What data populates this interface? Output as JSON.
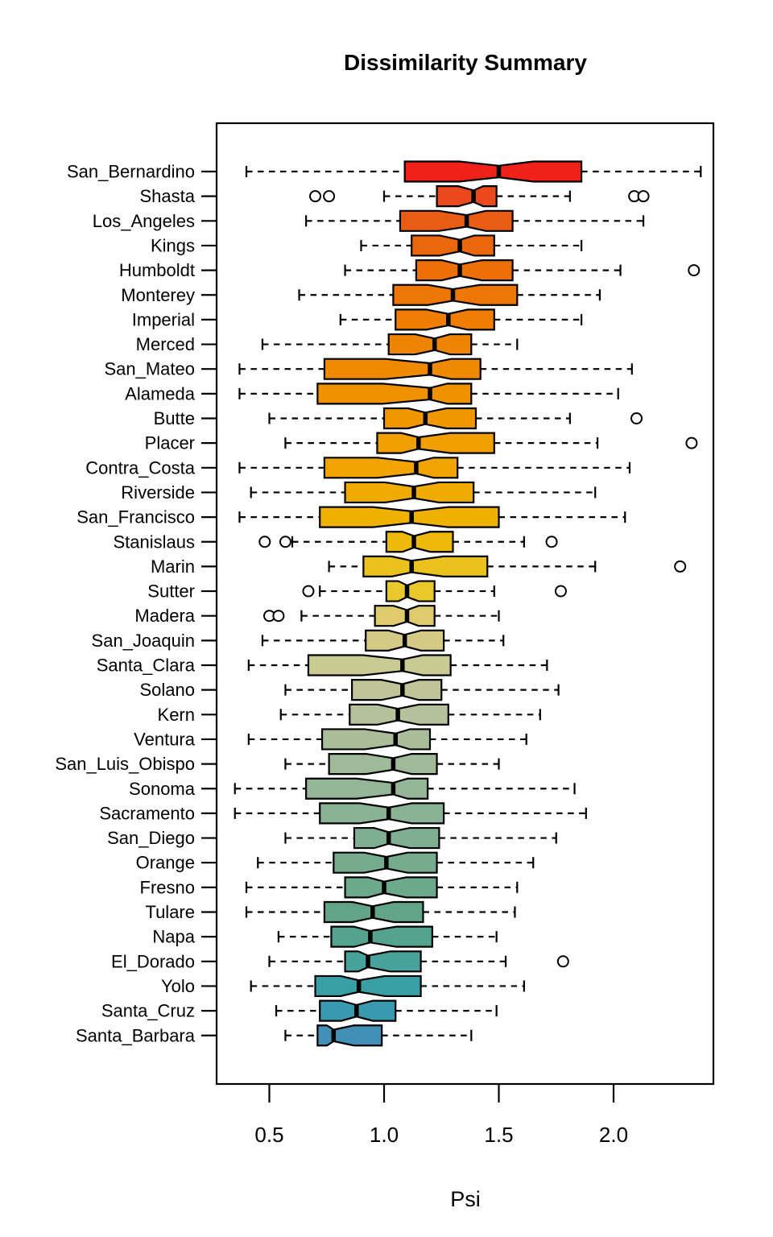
{
  "title": "Dissimilarity Summary",
  "chart_data": {
    "type": "boxplot",
    "orientation": "horizontal",
    "title": "Dissimilarity Summary",
    "xlabel": "Psi",
    "ylabel": "",
    "x_ticks": [
      "0.5",
      "1.0",
      "1.5",
      "2.0"
    ],
    "x_tick_values": [
      0.5,
      1.0,
      1.5,
      2.0
    ],
    "xlim": [
      0.27,
      2.44
    ],
    "grid": false,
    "notched": true,
    "whisker_style": "dashed",
    "frame_color": "#000000",
    "median_color": "#000000",
    "outlier_style": "open-circle",
    "rows": [
      {
        "label": "San_Bernardino",
        "color": "#EF2118",
        "whisker_lo": 0.4,
        "q1": 1.09,
        "median": 1.5,
        "q3": 1.86,
        "whisker_hi": 2.38,
        "outliers": []
      },
      {
        "label": "Shasta",
        "color": "#E9491D",
        "whisker_lo": 1.0,
        "q1": 1.23,
        "median": 1.39,
        "q3": 1.49,
        "whisker_hi": 1.81,
        "outliers": [
          0.7,
          0.76,
          2.09,
          2.13
        ]
      },
      {
        "label": "Los_Angeles",
        "color": "#EA5C14",
        "whisker_lo": 0.66,
        "q1": 1.07,
        "median": 1.36,
        "q3": 1.56,
        "whisker_hi": 2.13,
        "outliers": []
      },
      {
        "label": "Kings",
        "color": "#EB670E",
        "whisker_lo": 0.9,
        "q1": 1.12,
        "median": 1.33,
        "q3": 1.48,
        "whisker_hi": 1.86,
        "outliers": []
      },
      {
        "label": "Humboldt",
        "color": "#EC6F08",
        "whisker_lo": 0.83,
        "q1": 1.14,
        "median": 1.33,
        "q3": 1.56,
        "whisker_hi": 2.03,
        "outliers": [
          2.35
        ]
      },
      {
        "label": "Monterey",
        "color": "#ED7604",
        "whisker_lo": 0.63,
        "q1": 1.04,
        "median": 1.3,
        "q3": 1.58,
        "whisker_hi": 1.94,
        "outliers": []
      },
      {
        "label": "Imperial",
        "color": "#EE7D02",
        "whisker_lo": 0.81,
        "q1": 1.05,
        "median": 1.28,
        "q3": 1.48,
        "whisker_hi": 1.86,
        "outliers": []
      },
      {
        "label": "Merced",
        "color": "#EE8401",
        "whisker_lo": 0.47,
        "q1": 1.02,
        "median": 1.22,
        "q3": 1.38,
        "whisker_hi": 1.58,
        "outliers": []
      },
      {
        "label": "San_Mateo",
        "color": "#EF8A00",
        "whisker_lo": 0.37,
        "q1": 0.74,
        "median": 1.2,
        "q3": 1.42,
        "whisker_hi": 2.08,
        "outliers": []
      },
      {
        "label": "Alameda",
        "color": "#F09100",
        "whisker_lo": 0.37,
        "q1": 0.71,
        "median": 1.2,
        "q3": 1.38,
        "whisker_hi": 2.02,
        "outliers": []
      },
      {
        "label": "Butte",
        "color": "#F09700",
        "whisker_lo": 0.5,
        "q1": 1.0,
        "median": 1.18,
        "q3": 1.4,
        "whisker_hi": 1.81,
        "outliers": [
          2.1
        ]
      },
      {
        "label": "Placer",
        "color": "#F19E00",
        "whisker_lo": 0.57,
        "q1": 0.97,
        "median": 1.15,
        "q3": 1.48,
        "whisker_hi": 1.93,
        "outliers": [
          2.34
        ]
      },
      {
        "label": "Contra_Costa",
        "color": "#F1A400",
        "whisker_lo": 0.37,
        "q1": 0.74,
        "median": 1.14,
        "q3": 1.32,
        "whisker_hi": 2.07,
        "outliers": []
      },
      {
        "label": "Riverside",
        "color": "#F0AB00",
        "whisker_lo": 0.42,
        "q1": 0.83,
        "median": 1.13,
        "q3": 1.39,
        "whisker_hi": 1.92,
        "outliers": []
      },
      {
        "label": "San_Francisco",
        "color": "#EFB100",
        "whisker_lo": 0.37,
        "q1": 0.72,
        "median": 1.12,
        "q3": 1.5,
        "whisker_hi": 2.05,
        "outliers": []
      },
      {
        "label": "Stanislaus",
        "color": "#EDB90B",
        "whisker_lo": 0.6,
        "q1": 1.01,
        "median": 1.13,
        "q3": 1.3,
        "whisker_hi": 1.61,
        "outliers": [
          0.48,
          0.57,
          1.73
        ]
      },
      {
        "label": "Marin",
        "color": "#EBC11D",
        "whisker_lo": 0.76,
        "q1": 0.91,
        "median": 1.12,
        "q3": 1.45,
        "whisker_hi": 1.92,
        "outliers": [
          2.29
        ]
      },
      {
        "label": "Sutter",
        "color": "#E8C82B",
        "whisker_lo": 0.72,
        "q1": 1.01,
        "median": 1.1,
        "q3": 1.22,
        "whisker_hi": 1.48,
        "outliers": [
          0.67,
          1.77
        ]
      },
      {
        "label": "Madera",
        "color": "#DFCA6C",
        "whisker_lo": 0.64,
        "q1": 0.96,
        "median": 1.1,
        "q3": 1.22,
        "whisker_hi": 1.5,
        "outliers": [
          0.5,
          0.54
        ]
      },
      {
        "label": "San_Joaquin",
        "color": "#D5CA85",
        "whisker_lo": 0.47,
        "q1": 0.92,
        "median": 1.09,
        "q3": 1.26,
        "whisker_hi": 1.52,
        "outliers": []
      },
      {
        "label": "Santa_Clara",
        "color": "#CACA94",
        "whisker_lo": 0.41,
        "q1": 0.67,
        "median": 1.08,
        "q3": 1.29,
        "whisker_hi": 1.71,
        "outliers": []
      },
      {
        "label": "Solano",
        "color": "#BFC599",
        "whisker_lo": 0.57,
        "q1": 0.86,
        "median": 1.08,
        "q3": 1.25,
        "whisker_hi": 1.76,
        "outliers": []
      },
      {
        "label": "Kern",
        "color": "#B4C19B",
        "whisker_lo": 0.55,
        "q1": 0.85,
        "median": 1.06,
        "q3": 1.28,
        "whisker_hi": 1.68,
        "outliers": []
      },
      {
        "label": "Ventura",
        "color": "#A9BD9B",
        "whisker_lo": 0.41,
        "q1": 0.73,
        "median": 1.05,
        "q3": 1.2,
        "whisker_hi": 1.62,
        "outliers": []
      },
      {
        "label": "San_Luis_Obispo",
        "color": "#9FB99A",
        "whisker_lo": 0.57,
        "q1": 0.76,
        "median": 1.04,
        "q3": 1.23,
        "whisker_hi": 1.5,
        "outliers": []
      },
      {
        "label": "Sonoma",
        "color": "#94B598",
        "whisker_lo": 0.35,
        "q1": 0.66,
        "median": 1.04,
        "q3": 1.19,
        "whisker_hi": 1.83,
        "outliers": []
      },
      {
        "label": "Sacramento",
        "color": "#8AB295",
        "whisker_lo": 0.35,
        "q1": 0.72,
        "median": 1.02,
        "q3": 1.26,
        "whisker_hi": 1.88,
        "outliers": []
      },
      {
        "label": "San_Diego",
        "color": "#80AE92",
        "whisker_lo": 0.57,
        "q1": 0.87,
        "median": 1.02,
        "q3": 1.24,
        "whisker_hi": 1.75,
        "outliers": []
      },
      {
        "label": "Orange",
        "color": "#76AB8E",
        "whisker_lo": 0.45,
        "q1": 0.78,
        "median": 1.01,
        "q3": 1.23,
        "whisker_hi": 1.65,
        "outliers": []
      },
      {
        "label": "Fresno",
        "color": "#6CA88A",
        "whisker_lo": 0.4,
        "q1": 0.83,
        "median": 1.0,
        "q3": 1.23,
        "whisker_hi": 1.58,
        "outliers": []
      },
      {
        "label": "Tulare",
        "color": "#61A487",
        "whisker_lo": 0.4,
        "q1": 0.74,
        "median": 0.95,
        "q3": 1.17,
        "whisker_hi": 1.57,
        "outliers": []
      },
      {
        "label": "Napa",
        "color": "#54A38F",
        "whisker_lo": 0.54,
        "q1": 0.77,
        "median": 0.94,
        "q3": 1.21,
        "whisker_hi": 1.49,
        "outliers": []
      },
      {
        "label": "El_Dorado",
        "color": "#46A29A",
        "whisker_lo": 0.5,
        "q1": 0.83,
        "median": 0.93,
        "q3": 1.16,
        "whisker_hi": 1.53,
        "outliers": [
          1.78
        ]
      },
      {
        "label": "Yolo",
        "color": "#38A0A5",
        "whisker_lo": 0.42,
        "q1": 0.7,
        "median": 0.89,
        "q3": 1.16,
        "whisker_hi": 1.61,
        "outliers": []
      },
      {
        "label": "Santa_Cruz",
        "color": "#3999AE",
        "whisker_lo": 0.53,
        "q1": 0.72,
        "median": 0.88,
        "q3": 1.05,
        "whisker_hi": 1.49,
        "outliers": []
      },
      {
        "label": "Santa_Barbara",
        "color": "#4191B7",
        "whisker_lo": 0.57,
        "q1": 0.71,
        "median": 0.78,
        "q3": 0.99,
        "whisker_hi": 1.38,
        "outliers": []
      }
    ]
  }
}
